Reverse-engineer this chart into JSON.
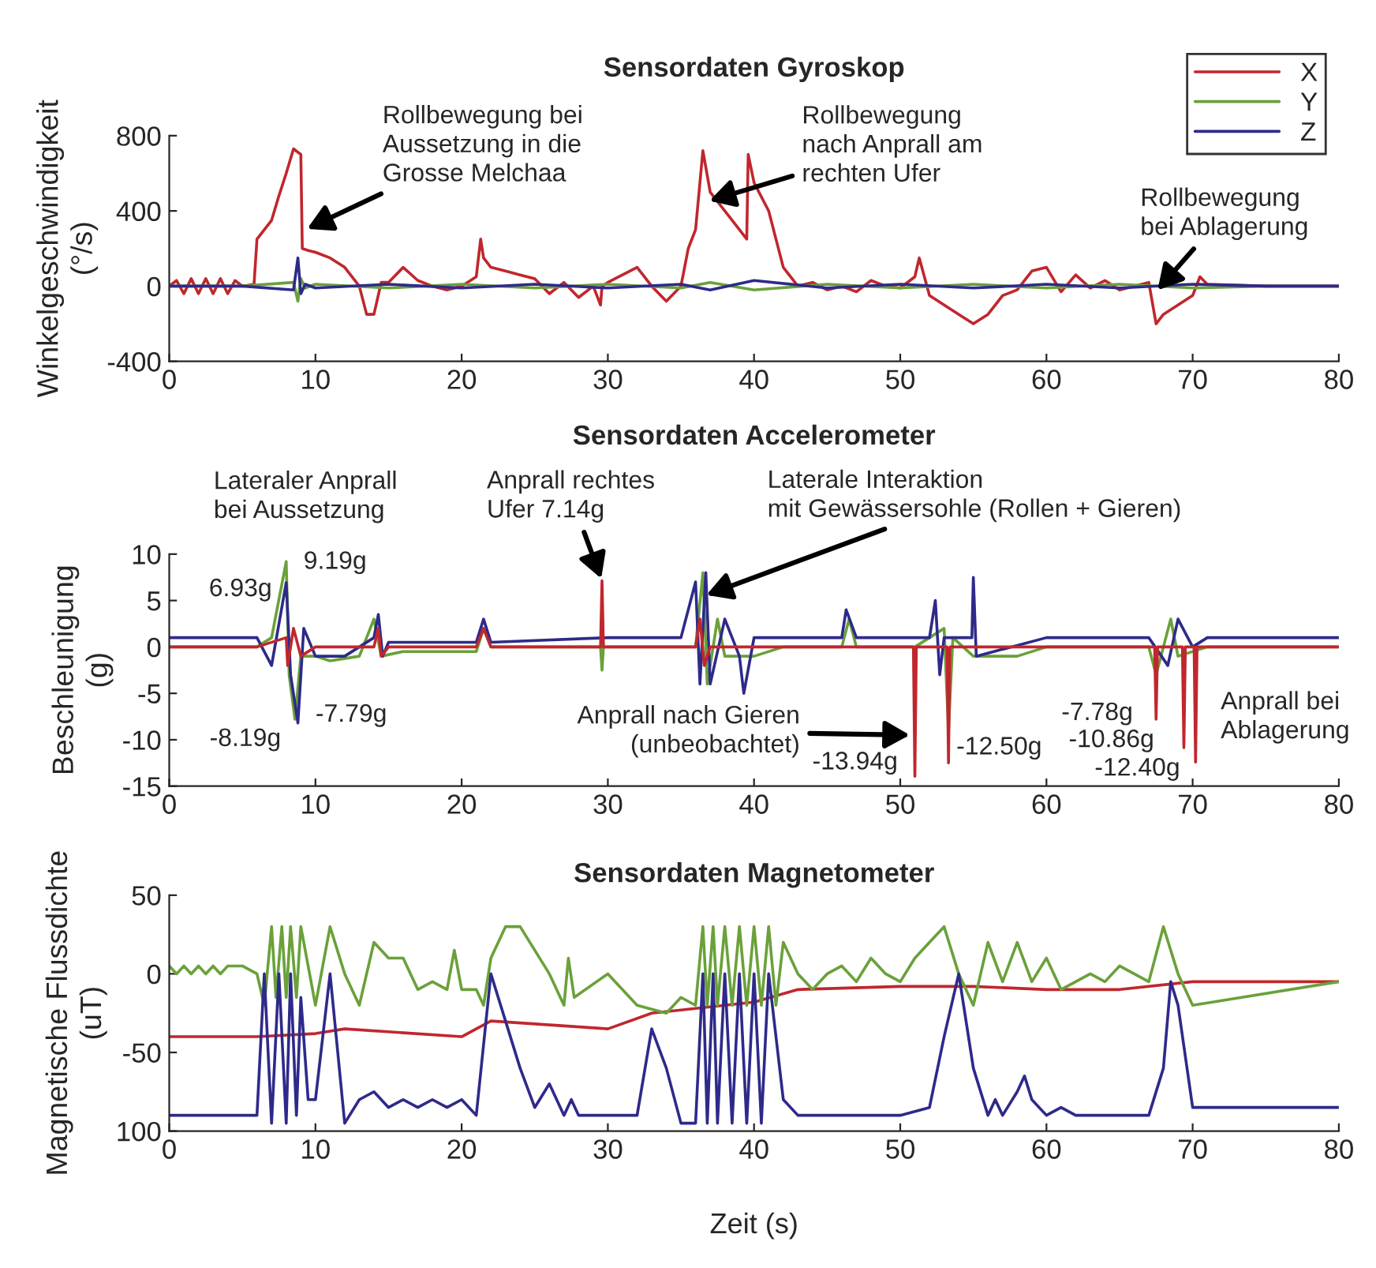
{
  "chart_data": [
    {
      "type": "line",
      "title": "Sensordaten Gyroskop",
      "ylabel": "Winkelgeschwindigkeit\n(°/s)",
      "xlim": [
        0,
        80
      ],
      "xticks": [
        0,
        10,
        20,
        30,
        40,
        50,
        60,
        70,
        80
      ],
      "ylim": [
        -400,
        800
      ],
      "yticks": [
        -400,
        0,
        400,
        800
      ],
      "legend": "top right",
      "grid": false,
      "marker": "none",
      "line_style": "solid",
      "series": [
        {
          "name": "X",
          "color": "#c0272d",
          "x": [
            0,
            0.5,
            1,
            1.5,
            2,
            2.5,
            3,
            3.5,
            4,
            4.5,
            5,
            5.8,
            6,
            7,
            7.5,
            8,
            8.5,
            9,
            9.1,
            9.5,
            10,
            11,
            12,
            13,
            13.5,
            14,
            14.5,
            15,
            16,
            17,
            18,
            19,
            20,
            21,
            21.3,
            21.5,
            22,
            23,
            24,
            25,
            26,
            27,
            28,
            29,
            29.5,
            29.6,
            30,
            31,
            32,
            33,
            34,
            35,
            35.5,
            36,
            36.5,
            37,
            38,
            39,
            39.5,
            39.6,
            40,
            41,
            42,
            43,
            44,
            45,
            46,
            47,
            48,
            49,
            50,
            51,
            51.3,
            52,
            53,
            54,
            55,
            56,
            57,
            58,
            59,
            60,
            61,
            62,
            63,
            64,
            65,
            66,
            67,
            67.5,
            68,
            69,
            70,
            70.5,
            71,
            75,
            80
          ],
          "values": [
            0,
            30,
            -40,
            40,
            -40,
            40,
            -40,
            40,
            -40,
            30,
            0,
            10,
            250,
            350,
            480,
            600,
            730,
            700,
            200,
            190,
            180,
            150,
            100,
            0,
            -150,
            -150,
            20,
            20,
            100,
            30,
            0,
            -20,
            0,
            50,
            250,
            150,
            100,
            80,
            60,
            40,
            -40,
            20,
            -60,
            0,
            -100,
            0,
            20,
            60,
            100,
            0,
            -80,
            0,
            200,
            300,
            720,
            500,
            400,
            300,
            250,
            700,
            550,
            400,
            100,
            0,
            20,
            -20,
            0,
            -30,
            30,
            0,
            -10,
            50,
            150,
            -50,
            -100,
            -150,
            -200,
            -150,
            -50,
            -20,
            80,
            100,
            -30,
            60,
            -10,
            30,
            -20,
            0,
            20,
            -200,
            -150,
            -100,
            -50,
            50,
            10,
            0,
            0
          ]
        },
        {
          "name": "Y",
          "color": "#6aa13a",
          "x": [
            0,
            5,
            8.5,
            8.8,
            9,
            9.3,
            10,
            15,
            20,
            25,
            30,
            35,
            37,
            40,
            45,
            50,
            55,
            60,
            65,
            70,
            75,
            80
          ],
          "values": [
            0,
            0,
            20,
            -80,
            40,
            -10,
            10,
            -10,
            10,
            -10,
            10,
            -10,
            20,
            -20,
            10,
            -10,
            10,
            -10,
            10,
            -10,
            0,
            0
          ]
        },
        {
          "name": "Z",
          "color": "#2e2a8a",
          "x": [
            0,
            5,
            8.5,
            8.8,
            9,
            9.3,
            10,
            15,
            20,
            25,
            30,
            35,
            37,
            40,
            45,
            50,
            55,
            60,
            65,
            70,
            75,
            80
          ],
          "values": [
            0,
            0,
            -20,
            150,
            -40,
            10,
            -10,
            10,
            -10,
            10,
            -10,
            10,
            -20,
            30,
            -10,
            10,
            -10,
            10,
            -10,
            10,
            0,
            0
          ]
        }
      ],
      "annotations": [
        {
          "text": "Rollbewegung bei\nAussetzung in die\nGrosse Melchaa",
          "x": 9.3,
          "y": 300
        },
        {
          "text": "Rollbewegung\nnach Anprall am\nrechten Ufer",
          "x": 36.8,
          "y": 450
        },
        {
          "text": "Rollbewegung\nbei Ablagerung",
          "x": 67.5,
          "y": -30
        }
      ]
    },
    {
      "type": "line",
      "title": "Sensordaten Accelerometer",
      "ylabel": "Beschleunigung\n(g)",
      "xlim": [
        0,
        80
      ],
      "xticks": [
        0,
        10,
        20,
        30,
        40,
        50,
        60,
        70,
        80
      ],
      "ylim": [
        -15,
        10
      ],
      "yticks": [
        -15,
        -10,
        -5,
        0,
        5,
        10
      ],
      "grid": false,
      "marker": "none",
      "line_style": "solid",
      "series": [
        {
          "color": "#6aa13a",
          "x": [
            0,
            6,
            7,
            8,
            8.2,
            8.6,
            9,
            10,
            11,
            13,
            14,
            14.5,
            16,
            21,
            21.5,
            22,
            29.5,
            29.6,
            29.7,
            36,
            36.5,
            36.8,
            37.5,
            38,
            40,
            42,
            46,
            46.5,
            47,
            51,
            53,
            53.3,
            53.6,
            55,
            58,
            60,
            67,
            67.5,
            68.5,
            69,
            71,
            80
          ],
          "values": [
            0,
            0,
            1,
            9.19,
            -3,
            -7.79,
            -1,
            -1,
            -1.5,
            -1,
            3,
            -1,
            -0.5,
            -0.5,
            2,
            0,
            0,
            -2.5,
            0,
            0,
            8,
            -4,
            3,
            -1,
            -1,
            0,
            0,
            3,
            0,
            0,
            2,
            -9,
            1,
            -1,
            -1,
            0,
            0,
            -3,
            3,
            -1,
            0,
            0
          ]
        },
        {
          "color": "#2e2a8a",
          "x": [
            0,
            6,
            7,
            8,
            8.3,
            8.8,
            9.2,
            10,
            12,
            14,
            14.3,
            14.6,
            15,
            21,
            21.5,
            22,
            30,
            35,
            36,
            36.3,
            36.7,
            37,
            38,
            39,
            39.3,
            40,
            46,
            46.3,
            47,
            52,
            52.4,
            52.7,
            53,
            54.9,
            55,
            55.2,
            60,
            67,
            68.3,
            69,
            70,
            71,
            80
          ],
          "values": [
            1,
            1,
            -2,
            6.93,
            -3,
            -8.19,
            2,
            -1,
            -1,
            1,
            3.5,
            -1,
            0.5,
            0.5,
            3,
            0.5,
            1,
            1,
            7,
            -4,
            8,
            -4,
            3,
            -1,
            -5,
            1,
            1,
            4,
            1,
            1,
            5,
            -3,
            1,
            1,
            7.5,
            -1,
            1,
            1,
            -2,
            3,
            0,
            1,
            1
          ]
        },
        {
          "color": "#c0272d",
          "x": [
            0,
            6,
            8,
            8.1,
            8.5,
            9,
            10,
            14,
            14.3,
            14.5,
            15,
            21,
            21.5,
            22,
            29.5,
            29.6,
            29.7,
            36,
            36.3,
            36.6,
            37,
            50.9,
            51,
            51.1,
            53.2,
            53.3,
            53.4,
            67.4,
            67.5,
            67.6,
            69.3,
            69.4,
            69.5,
            70.1,
            70.2,
            70.3,
            71,
            80
          ],
          "values": [
            0,
            0,
            1,
            -2,
            2,
            -1,
            0,
            0,
            2,
            -1,
            0,
            0,
            2,
            0,
            0,
            7.14,
            0,
            0,
            3,
            -2,
            0,
            0,
            -13.94,
            0,
            0,
            -12.5,
            0,
            0,
            -7.78,
            0,
            0,
            -10.86,
            0,
            0,
            -12.4,
            0,
            0,
            0
          ]
        }
      ],
      "annotations": [
        "Lateraler Anprall\nbei Aussetzung",
        {
          "text": "Anprall rechtes\nUfer 7.14g",
          "x": 29.6,
          "y": 7.14
        },
        {
          "text": "Laterale Interaktion\nmit Gewässersohle (Rollen + Gieren)",
          "x": 36.6,
          "y": 5.5
        },
        {
          "text": "Anprall nach Gieren\n(unbeobachtet)",
          "x": 50.8,
          "y": -9.5
        },
        {
          "text": "6.93g",
          "x": 8,
          "y": 6.93
        },
        {
          "text": "9.19g",
          "x": 8,
          "y": 9.19
        },
        {
          "text": "-8.19g",
          "x": 8.8,
          "y": -8.19
        },
        {
          "text": "-7.79g",
          "x": 8.6,
          "y": -7.79
        },
        {
          "text": "-13.94g",
          "x": 51,
          "y": -13.94
        },
        {
          "text": "-12.50g",
          "x": 53.3,
          "y": -12.5
        },
        {
          "text": "-7.78g",
          "x": 67.5,
          "y": -7.78
        },
        {
          "text": "-10.86g",
          "x": 69.4,
          "y": -10.86
        },
        {
          "text": "-12.40g",
          "x": 70.2,
          "y": -12.4
        },
        "Anprall bei\nAblagerung"
      ]
    },
    {
      "type": "line",
      "title": "Sensordaten Magnetometer",
      "xlabel": "Zeit (s)",
      "ylabel": "Magnetische Flussdichte\n(uT)",
      "xlim": [
        0,
        80
      ],
      "xticks": [
        0,
        10,
        20,
        30,
        40,
        50,
        60,
        70,
        80
      ],
      "ylim": [
        -100,
        50
      ],
      "yticks": [
        {
          "value": -100,
          "label": "100"
        },
        -50,
        0,
        50
      ],
      "grid": false,
      "marker": "none",
      "line_style": "solid",
      "series": [
        {
          "color": "#c0272d",
          "x": [
            0,
            6,
            10,
            12,
            20,
            22,
            30,
            33,
            36,
            40,
            43,
            50,
            55,
            60,
            65,
            70,
            80
          ],
          "values": [
            -40,
            -40,
            -38,
            -35,
            -40,
            -30,
            -35,
            -25,
            -22,
            -18,
            -10,
            -8,
            -8,
            -10,
            -10,
            -5,
            -5
          ]
        },
        {
          "color": "#6aa13a",
          "x": [
            0,
            0.5,
            1,
            1.5,
            2,
            2.5,
            3,
            3.5,
            4,
            5,
            6,
            6.5,
            7,
            7.3,
            7.7,
            8,
            8.3,
            8.7,
            9,
            10,
            11,
            12,
            13,
            14,
            15,
            16,
            17,
            18,
            19,
            19.5,
            20,
            21,
            21.5,
            22,
            23,
            24,
            26,
            27,
            27.3,
            27.7,
            30,
            32,
            34,
            35,
            36,
            36.5,
            36.8,
            37.2,
            37.5,
            38,
            38.5,
            39,
            39.5,
            40,
            40.5,
            41,
            41.5,
            42,
            43,
            44,
            45,
            46,
            47,
            48,
            49,
            50,
            51,
            52,
            53,
            54,
            55,
            56,
            57,
            58,
            59,
            60,
            61,
            62,
            63,
            64,
            65,
            67,
            68,
            69,
            70,
            80
          ],
          "values": [
            5,
            0,
            5,
            0,
            5,
            0,
            5,
            0,
            5,
            5,
            0,
            -20,
            30,
            -15,
            30,
            -15,
            30,
            -15,
            30,
            -20,
            30,
            0,
            -20,
            20,
            10,
            10,
            -10,
            -5,
            -10,
            15,
            -10,
            -10,
            -20,
            10,
            30,
            30,
            0,
            -20,
            10,
            -15,
            0,
            -20,
            -25,
            -15,
            -20,
            30,
            -20,
            30,
            -20,
            30,
            -20,
            30,
            -20,
            30,
            -20,
            30,
            -20,
            20,
            0,
            -10,
            0,
            5,
            -5,
            10,
            0,
            -5,
            10,
            20,
            30,
            0,
            -20,
            20,
            -5,
            20,
            -5,
            10,
            -10,
            -5,
            0,
            -5,
            5,
            -5,
            30,
            0,
            -20,
            -5
          ]
        },
        {
          "color": "#2e2a8a",
          "x": [
            0,
            6,
            6.5,
            7,
            7.5,
            8,
            8.3,
            8.7,
            9,
            9.5,
            10,
            11,
            12,
            13,
            14,
            15,
            16,
            17,
            18,
            19,
            20,
            21,
            22,
            23,
            24,
            25,
            26,
            27,
            27.5,
            28,
            32,
            33,
            34,
            35,
            36,
            36.5,
            36.8,
            37.2,
            37.5,
            38,
            38.5,
            39,
            39.5,
            40,
            40.5,
            41,
            42,
            43,
            50,
            52,
            53,
            54,
            55,
            56,
            56.5,
            57,
            58,
            58.5,
            59,
            60,
            61,
            62,
            67,
            68,
            68.5,
            69,
            70,
            80
          ],
          "values": [
            -90,
            -90,
            0,
            -95,
            0,
            -95,
            0,
            -90,
            -15,
            -80,
            -80,
            0,
            -95,
            -80,
            -75,
            -85,
            -80,
            -85,
            -80,
            -85,
            -80,
            -90,
            0,
            -30,
            -60,
            -85,
            -70,
            -90,
            -80,
            -90,
            -90,
            -35,
            -60,
            -95,
            -95,
            0,
            -95,
            0,
            -95,
            0,
            -95,
            0,
            -95,
            0,
            -95,
            0,
            -80,
            -90,
            -90,
            -85,
            -40,
            0,
            -60,
            -90,
            -80,
            -90,
            -75,
            -65,
            -80,
            -90,
            -85,
            -90,
            -90,
            -60,
            -5,
            -20,
            -85,
            -85
          ]
        }
      ]
    }
  ]
}
